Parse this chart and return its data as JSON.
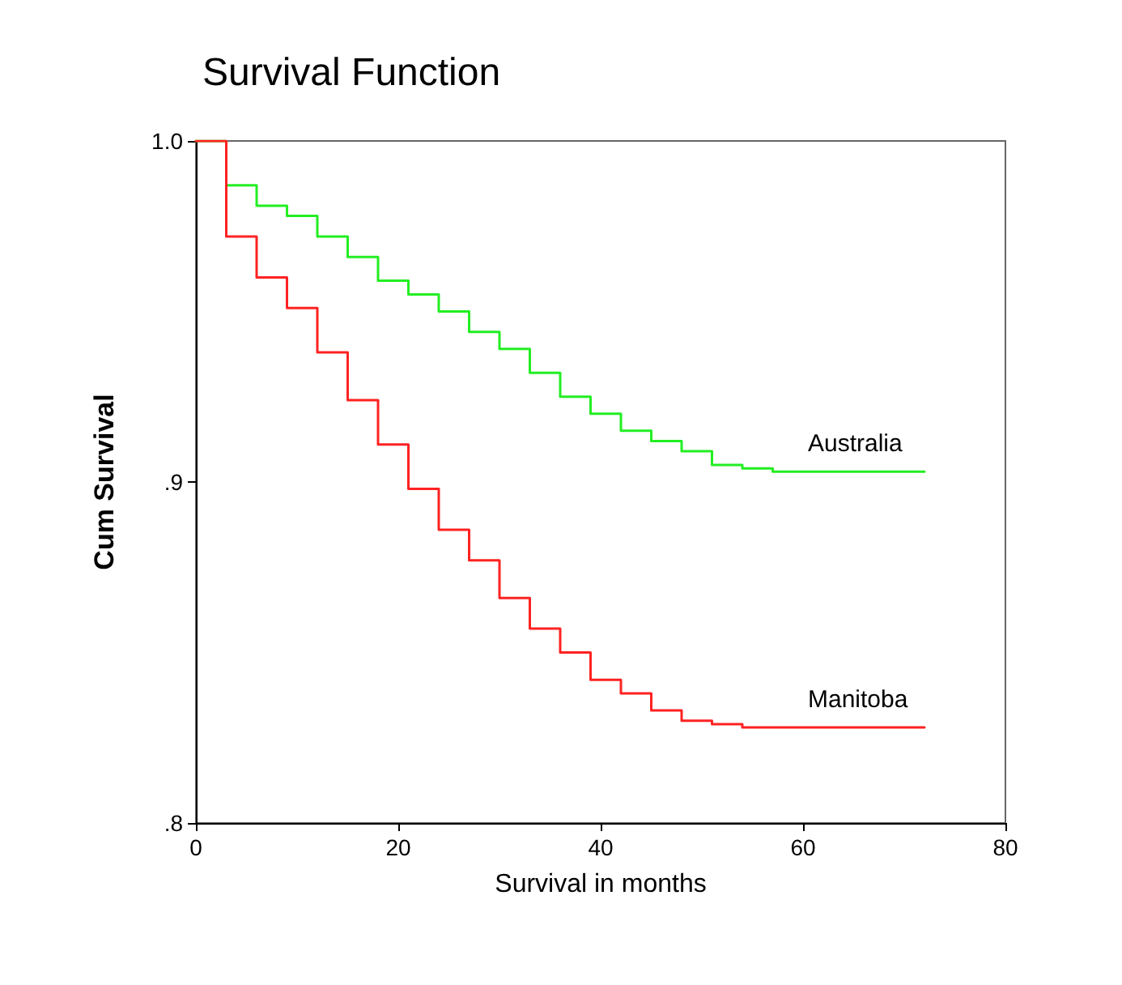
{
  "chart_data": {
    "type": "step",
    "title": "Survival Function",
    "xlabel": "Survival in months",
    "ylabel": "Cum Survival",
    "x": [
      0,
      3,
      6,
      9,
      12,
      15,
      18,
      21,
      24,
      27,
      30,
      33,
      36,
      39,
      42,
      45,
      48,
      51,
      54,
      57,
      72
    ],
    "series": [
      {
        "name": "Australia",
        "color": "#22ee22",
        "values": [
          1.0,
          0.987,
          0.981,
          0.978,
          0.972,
          0.966,
          0.959,
          0.955,
          0.95,
          0.944,
          0.939,
          0.932,
          0.925,
          0.92,
          0.915,
          0.912,
          0.909,
          0.905,
          0.904,
          0.903,
          0.903
        ]
      },
      {
        "name": "Manitoba",
        "color": "#ff2222",
        "values": [
          1.0,
          0.972,
          0.96,
          0.951,
          0.938,
          0.924,
          0.911,
          0.898,
          0.886,
          0.877,
          0.866,
          0.857,
          0.85,
          0.842,
          0.838,
          0.833,
          0.83,
          0.829,
          0.828,
          0.828,
          0.828
        ]
      }
    ],
    "xlim": [
      0,
      80
    ],
    "xticks": [
      0,
      20,
      40,
      60,
      80
    ],
    "ylim": [
      0.8,
      1.0
    ],
    "yticks": [
      {
        "value": 0.8,
        "label": ".8"
      },
      {
        "value": 0.9,
        "label": ".9"
      },
      {
        "value": 1.0,
        "label": "1.0"
      }
    ],
    "grid": false,
    "legend": false,
    "marker": "none",
    "line_style": "solid"
  }
}
